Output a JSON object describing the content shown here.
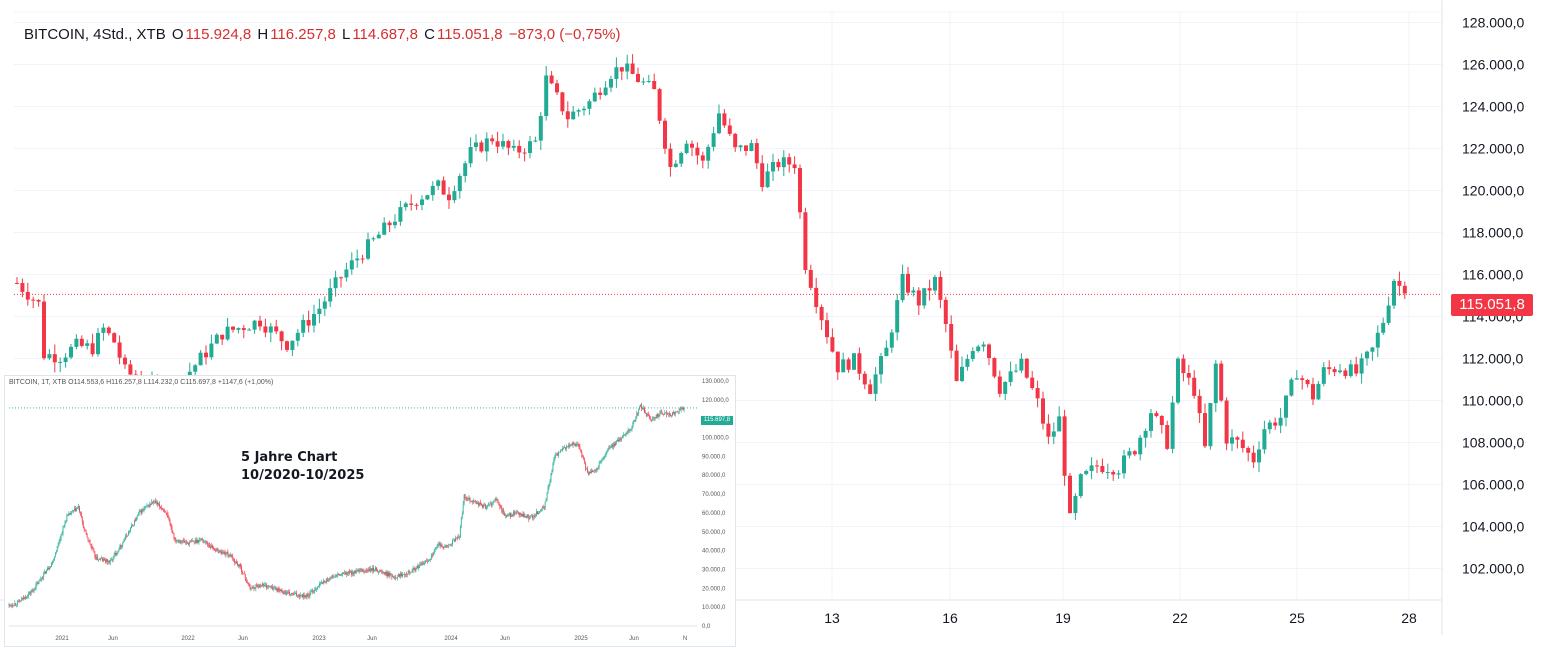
{
  "header": {
    "symbol": "BITCOIN, 4Std., XTB",
    "open_key": "O",
    "open": "115.924,8",
    "high_key": "H",
    "high": "116.257,8",
    "low_key": "L",
    "low": "114.687,8",
    "close_key": "C",
    "close": "115.051,8",
    "change": "−873,0 (−0,75%)"
  },
  "current_price_label": "115.051,8",
  "colors": {
    "up": "#22ab94",
    "down": "#f23645",
    "last_line": "#f23645",
    "inset_last_line": "#22ab94"
  },
  "inset": {
    "title_line1": "5 Jahre Chart",
    "title_line2": "10/2020-10/2025",
    "legend": "BITCOIN, 1T, XTB  O114.553,6  H116.257,8  L114.232,0  C115.697,8  +1147,6 (+1,00%)",
    "price_tag": "115.697,8"
  },
  "chart_data": [
    {
      "type": "candlestick",
      "title": "BITCOIN, 4Std., XTB",
      "ylim": [
        100500,
        128500
      ],
      "y_ticks": [
        "102.000,0",
        "104.000,0",
        "106.000,0",
        "108.000,0",
        "110.000,0",
        "112.000,0",
        "114.000,0",
        "116.000,0",
        "118.000,0",
        "120.000,0",
        "122.000,0",
        "124.000,0",
        "126.000,0",
        "128.000,0"
      ],
      "y_tick_values": [
        102000,
        104000,
        106000,
        108000,
        110000,
        112000,
        114000,
        116000,
        118000,
        120000,
        122000,
        124000,
        126000,
        128000
      ],
      "x_ticks": [
        "13",
        "16",
        "19",
        "22",
        "25",
        "28"
      ],
      "last_price": 115051.8,
      "grid": true,
      "path": [
        [
          0,
          115600
        ],
        [
          4,
          114600
        ],
        [
          5,
          112200
        ],
        [
          8,
          112100
        ],
        [
          11,
          112600
        ],
        [
          14,
          112500
        ],
        [
          16,
          113400
        ],
        [
          18,
          112800
        ],
        [
          20,
          111400
        ],
        [
          25,
          110600
        ],
        [
          30,
          110800
        ],
        [
          38,
          113200
        ],
        [
          45,
          113800
        ],
        [
          50,
          112700
        ],
        [
          56,
          114400
        ],
        [
          60,
          115900
        ],
        [
          63,
          116800
        ],
        [
          66,
          117600
        ],
        [
          70,
          118700
        ],
        [
          74,
          119600
        ],
        [
          78,
          120200
        ],
        [
          80,
          119800
        ],
        [
          84,
          121800
        ],
        [
          88,
          122500
        ],
        [
          92,
          121800
        ],
        [
          96,
          122300
        ],
        [
          98,
          125300
        ],
        [
          102,
          123500
        ],
        [
          106,
          124200
        ],
        [
          110,
          125600
        ],
        [
          112,
          125900
        ],
        [
          115,
          125300
        ],
        [
          118,
          124700
        ],
        [
          121,
          121100
        ],
        [
          124,
          122500
        ],
        [
          127,
          121300
        ],
        [
          130,
          123700
        ],
        [
          133,
          121900
        ],
        [
          136,
          122100
        ],
        [
          138,
          120500
        ],
        [
          141,
          121300
        ],
        [
          144,
          121300
        ],
        [
          146,
          116500
        ],
        [
          148,
          114800
        ],
        [
          152,
          111600
        ],
        [
          155,
          111900
        ],
        [
          158,
          110600
        ],
        [
          161,
          112400
        ],
        [
          164,
          115700
        ],
        [
          167,
          114700
        ],
        [
          170,
          115700
        ],
        [
          172,
          113600
        ],
        [
          174,
          110800
        ],
        [
          177,
          112600
        ],
        [
          179,
          112900
        ],
        [
          182,
          110600
        ],
        [
          186,
          111700
        ],
        [
          189,
          109900
        ],
        [
          191,
          108100
        ],
        [
          193,
          109100
        ],
        [
          195,
          104300
        ],
        [
          197,
          106200
        ],
        [
          200,
          106900
        ],
        [
          204,
          106800
        ],
        [
          207,
          107700
        ],
        [
          210,
          109500
        ],
        [
          213,
          108000
        ],
        [
          215,
          111700
        ],
        [
          218,
          110500
        ],
        [
          220,
          107700
        ],
        [
          222,
          111700
        ],
        [
          224,
          108200
        ],
        [
          226,
          108000
        ],
        [
          229,
          107200
        ],
        [
          231,
          108700
        ],
        [
          234,
          109200
        ],
        [
          237,
          111400
        ],
        [
          240,
          110200
        ],
        [
          242,
          111400
        ],
        [
          245,
          111600
        ],
        [
          248,
          111300
        ],
        [
          251,
          112400
        ],
        [
          253,
          113800
        ],
        [
          255,
          115800
        ],
        [
          257,
          115100
        ]
      ]
    },
    {
      "type": "candlestick",
      "title": "5 Jahre Chart 10/2020-10/2025",
      "ylim": [
        0,
        130000
      ],
      "y_ticks": [
        "0,0",
        "10.000,0",
        "20.000,0",
        "30.000,0",
        "40.000,0",
        "50.000,0",
        "60.000,0",
        "70.000,0",
        "80.000,0",
        "90.000,0",
        "100.000,0",
        "110.000,0",
        "120.000,0",
        "130.000,0"
      ],
      "y_tick_values": [
        0,
        10000,
        20000,
        30000,
        40000,
        50000,
        60000,
        70000,
        80000,
        90000,
        100000,
        110000,
        120000,
        130000
      ],
      "x_ticks": [
        "2021",
        "Jun",
        "2022",
        "Jun",
        "2023",
        "Jun",
        "2024",
        "Jun",
        "2025",
        "Jun",
        "N"
      ],
      "last_price": 115697.8,
      "path": [
        [
          0,
          11000
        ],
        [
          10,
          12500
        ],
        [
          25,
          19000
        ],
        [
          45,
          34000
        ],
        [
          60,
          58000
        ],
        [
          72,
          63000
        ],
        [
          78,
          51000
        ],
        [
          90,
          36000
        ],
        [
          105,
          34000
        ],
        [
          120,
          46000
        ],
        [
          135,
          60000
        ],
        [
          150,
          66000
        ],
        [
          162,
          61000
        ],
        [
          172,
          46000
        ],
        [
          186,
          44000
        ],
        [
          200,
          46000
        ],
        [
          215,
          40000
        ],
        [
          228,
          38000
        ],
        [
          240,
          31000
        ],
        [
          250,
          20000
        ],
        [
          262,
          22000
        ],
        [
          275,
          20000
        ],
        [
          290,
          17000
        ],
        [
          310,
          16000
        ],
        [
          322,
          22000
        ],
        [
          335,
          26000
        ],
        [
          350,
          28000
        ],
        [
          365,
          29000
        ],
        [
          380,
          30000
        ],
        [
          400,
          26000
        ],
        [
          420,
          30000
        ],
        [
          435,
          35000
        ],
        [
          445,
          43000
        ],
        [
          455,
          42000
        ],
        [
          467,
          48000
        ],
        [
          472,
          69000
        ],
        [
          482,
          66000
        ],
        [
          495,
          63000
        ],
        [
          505,
          67000
        ],
        [
          515,
          58000
        ],
        [
          525,
          60000
        ],
        [
          540,
          57000
        ],
        [
          555,
          63000
        ],
        [
          566,
          90000
        ],
        [
          578,
          95000
        ],
        [
          590,
          97000
        ],
        [
          600,
          81000
        ],
        [
          610,
          84000
        ],
        [
          622,
          94000
        ],
        [
          635,
          100000
        ],
        [
          645,
          105000
        ],
        [
          655,
          117000
        ],
        [
          665,
          109000
        ],
        [
          675,
          113000
        ],
        [
          685,
          112000
        ],
        [
          700,
          115700
        ]
      ]
    }
  ]
}
